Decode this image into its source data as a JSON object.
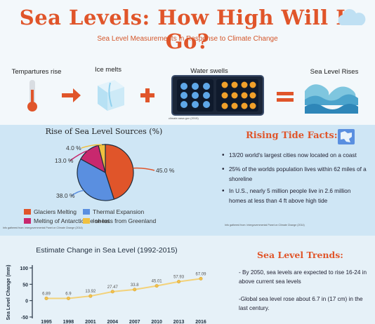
{
  "header": {
    "title": "Sea Levels: How High Will It Go?",
    "subtitle": "Sea Level Measurements in Response to Climate Change"
  },
  "process": {
    "steps": [
      "Tempartures rise",
      "Ice melts",
      "Water swells",
      "Sea Level Rises"
    ],
    "source": "climate.nasa.gov (2015)"
  },
  "pie": {
    "title": "Rise of Sea Level Sources (%)",
    "source": "Info gathered from: Intergovernmental Panel on Climate Change (2014)"
  },
  "facts": {
    "title": "Rising Tide Facts:",
    "items": [
      "13/20 world's largest cities now located on a coast",
      "25% of the worlds population lives within 62 miles of a shoreline",
      "In U.S., nearly 5 million people live in 2.6 million homes at less than 4 ft above high tide"
    ],
    "source": "Info gathered from: Intergovernmental Panel on Climate Change (2014)"
  },
  "trends": {
    "title": "Sea Level Trends:",
    "items": [
      "- By 2050, sea levels are expected to rise 16-24 in above current sea levels",
      "-Global sea level rose about 6.7 in (17 cm) in the last century."
    ]
  },
  "colors": {
    "title": "#e0552a",
    "glaciers": "#e0552a",
    "thermal": "#5a8fe0",
    "antarctic": "#c8286e",
    "greenland": "#f0c040",
    "line": "#f3d27a"
  },
  "chart_data": [
    {
      "type": "pie",
      "title": "Rise of Sea Level Sources (%)",
      "categories": [
        "Glaciers Melting",
        "Thermal Expansion",
        "Melting of Antarctic ice sheet",
        "Ice loss from Greenland"
      ],
      "values": [
        45.0,
        38.0,
        13.0,
        4.0
      ],
      "value_labels": [
        "45.0 %",
        "38.0 %",
        "13.0 %",
        "4.0 %"
      ],
      "legend_position": "bottom"
    },
    {
      "type": "line",
      "title": "Estimate Change in Sea Level (1992-2015)",
      "ylabel": "Sea Level Change (mm)",
      "x": [
        "1995",
        "1998",
        "2001",
        "2004",
        "2007",
        "2010",
        "2013",
        "2016"
      ],
      "series": [
        {
          "values": [
            6.89,
            6.9,
            13.92,
            27.47,
            33.8,
            45.01,
            57.93,
            67.09
          ]
        }
      ],
      "value_labels": [
        "6.89",
        "6.9",
        "13.92",
        "27.47",
        "33.8",
        "45.01",
        "57.93",
        "67.09"
      ],
      "yticks": [
        "100",
        "50",
        "0",
        "-50"
      ],
      "ylim": [
        -50,
        100
      ],
      "grid": false
    }
  ]
}
